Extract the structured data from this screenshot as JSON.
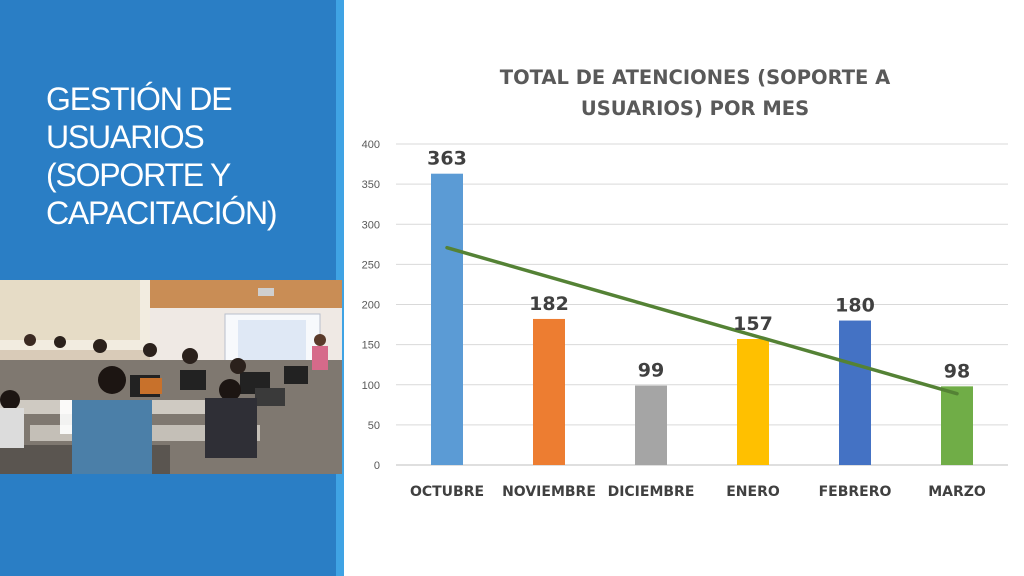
{
  "slide": {
    "title": "GESTIÓN DE\nUSUARIOS\n(SOPORTE Y\nCAPACITACIÓN)",
    "sidebar_color": "#2a7ec5",
    "accent_strip_color": "#3fa3e4",
    "photo_description": "classroom-photo"
  },
  "chart_data": {
    "type": "bar",
    "title": "TOTAL DE ATENCIONES (SOPORTE A\nUSUARIOS) POR MES",
    "categories": [
      "OCTUBRE",
      "NOVIEMBRE",
      "DICIEMBRE",
      "ENERO",
      "FEBRERO",
      "MARZO"
    ],
    "values": [
      363,
      182,
      99,
      157,
      180,
      98
    ],
    "bar_colors": [
      "#5b9bd5",
      "#ed7d31",
      "#a5a5a5",
      "#ffc000",
      "#4472c4",
      "#70ad47"
    ],
    "yticks": [
      "0",
      "50",
      "100",
      "150",
      "200",
      "250",
      "300",
      "350",
      "400"
    ],
    "ylim": [
      0,
      400
    ],
    "grid": true,
    "trendline": {
      "type": "linear",
      "color": "#548235"
    },
    "xlabel": "",
    "ylabel": ""
  }
}
